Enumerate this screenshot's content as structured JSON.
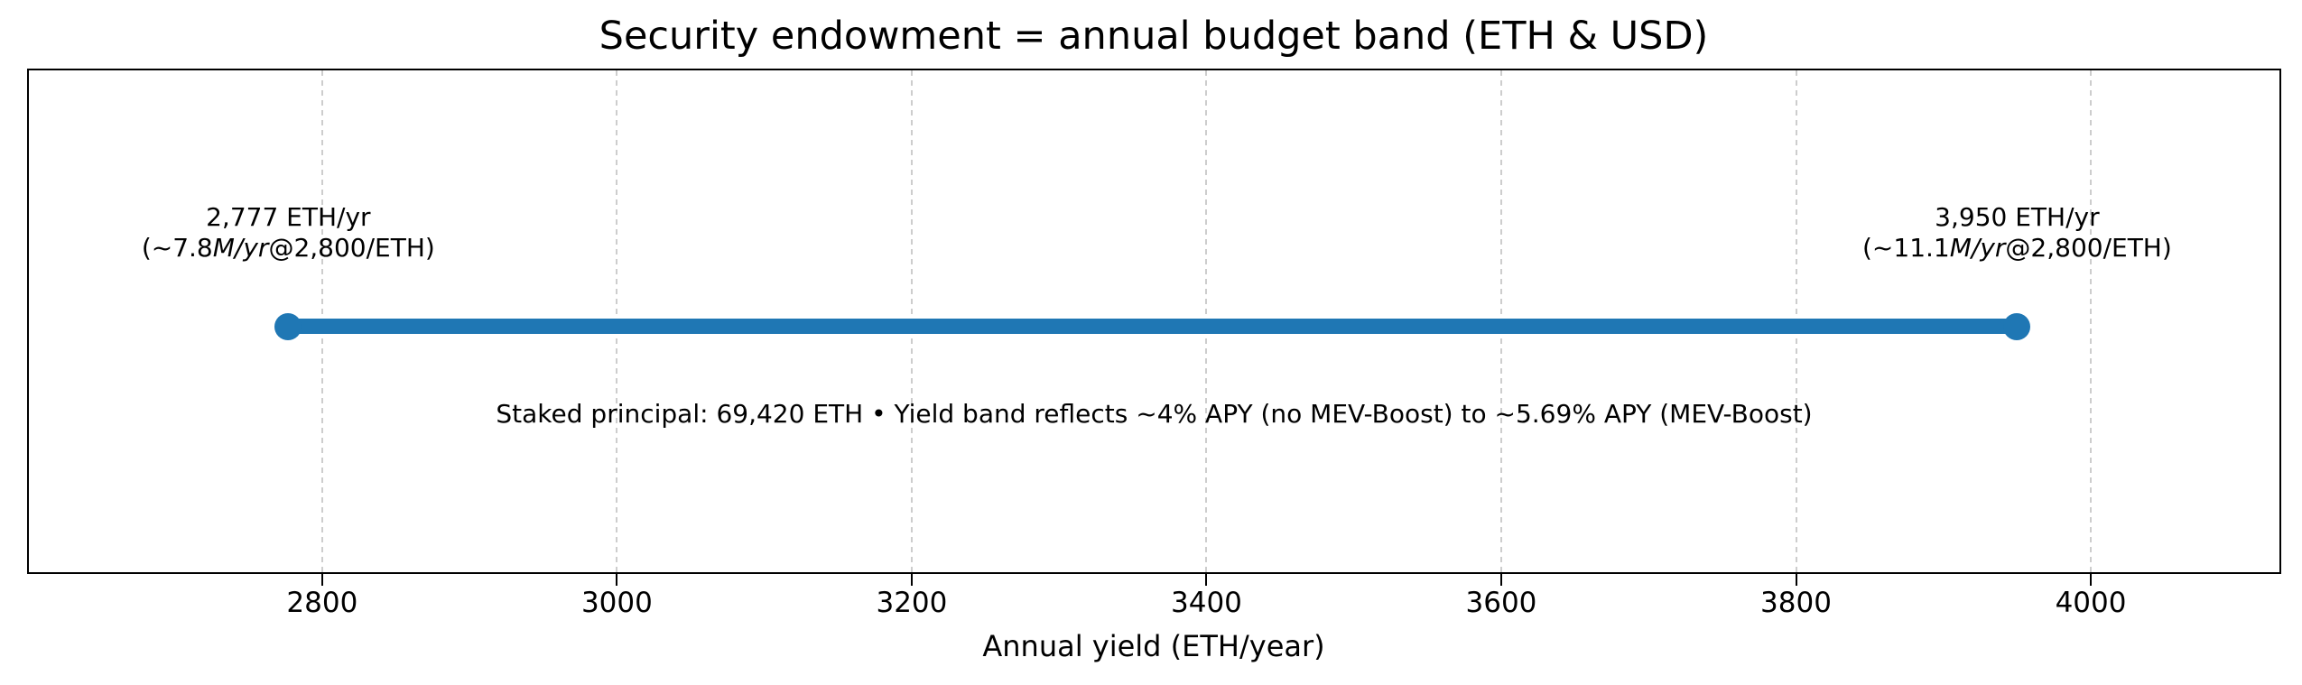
{
  "title": "Security endowment = annual budget band (ETH & USD)",
  "colors": {
    "band": "#1f77b4",
    "grid": "#cdcdcd",
    "axis": "#000000",
    "text": "#000000",
    "background": "#ffffff"
  },
  "chart_data": {
    "type": "line",
    "subtype": "horizontal-range-dumbbell",
    "title": "Security endowment = annual budget band (ETH & USD)",
    "xlabel": "Annual yield (ETH/year)",
    "ylabel": "",
    "xlim": [
      2601,
      4128
    ],
    "xticks": [
      "2800",
      "3000",
      "3200",
      "3400",
      "3600",
      "3800",
      "4000"
    ],
    "xtick_values": [
      2800,
      3000,
      3200,
      3400,
      3600,
      3800,
      4000
    ],
    "grid": "vertical dashed gridlines at each x tick",
    "legend": "none",
    "band": {
      "start": 2777,
      "end": 3950,
      "color": "#1f77b4",
      "start_label": "2,777 ETH/yr",
      "end_label": "3,950 ETH/yr"
    },
    "annotations": [
      {
        "x": 2777,
        "line1": "2,777 ETH/yr",
        "line2_prefix": "(~7.8",
        "line2_italic": "M/yr",
        "line2_suffix": "@2,800/ETH)"
      },
      {
        "x": 3950,
        "line1": "3,950 ETH/yr",
        "line2_prefix": "(~11.1",
        "line2_italic": "M/yr",
        "line2_suffix": "@2,800/ETH)"
      }
    ],
    "note": "Staked principal: 69,420 ETH • Yield band reflects ~4% APY (no MEV-Boost) to ~5.69% APY (MEV-Boost)"
  }
}
